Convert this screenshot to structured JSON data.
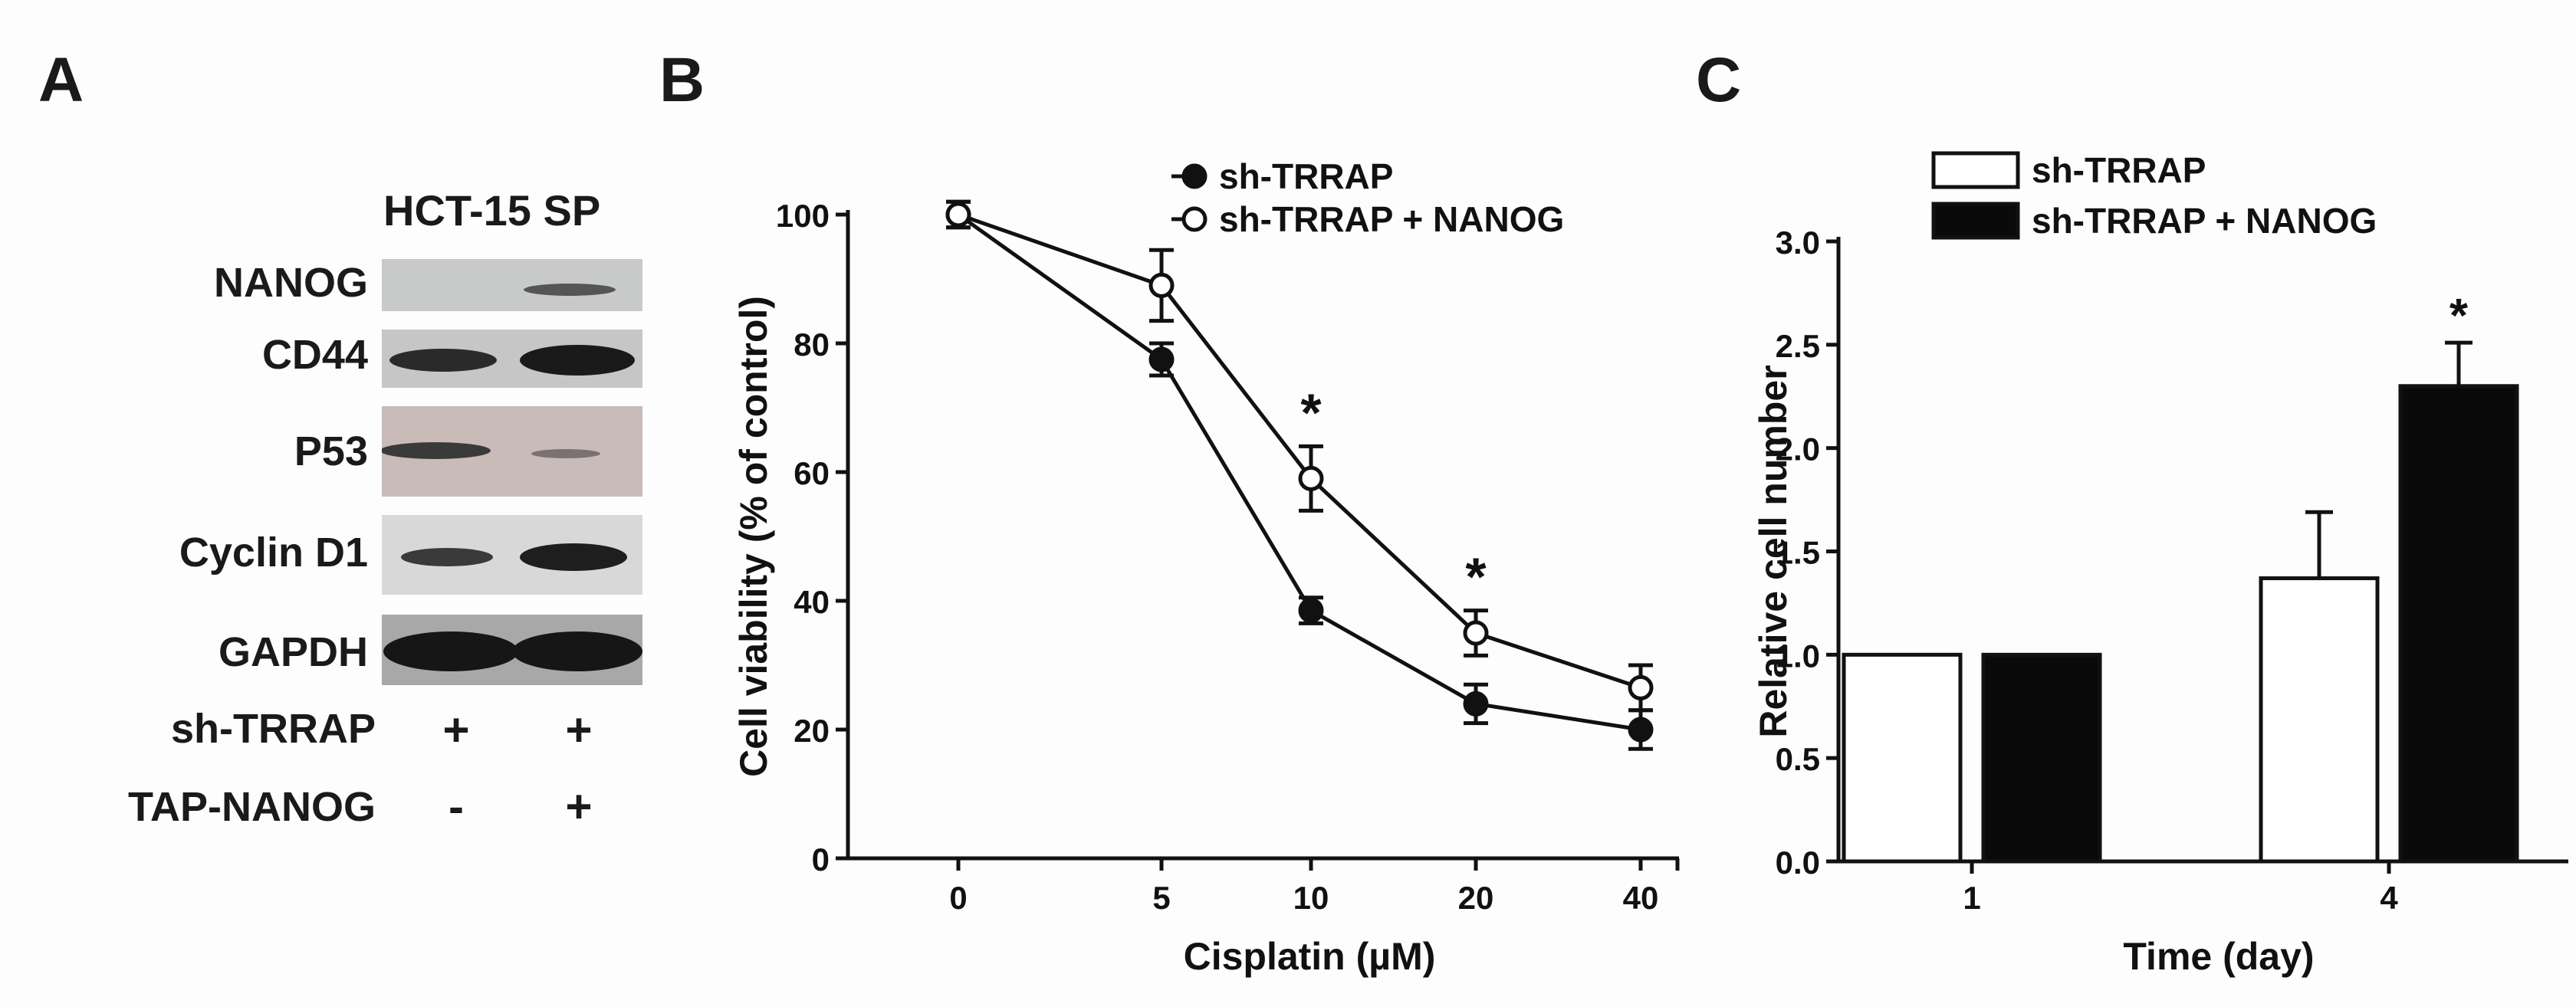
{
  "panels": {
    "a": "A",
    "b": "B",
    "c": "C"
  },
  "western_blot": {
    "title": "HCT-15 SP",
    "proteins": [
      "NANOG",
      "CD44",
      "P53",
      "Cyclin D1",
      "GAPDH"
    ],
    "conditions": [
      {
        "label": "sh-TRRAP",
        "lane1": "+",
        "lane2": "+"
      },
      {
        "label": "TAP-NANOG",
        "lane1": "-",
        "lane2": "+"
      }
    ],
    "colors": {
      "membrane": "#cfcfcf",
      "p53_membrane": "#cdbdb9",
      "band": "#1e1e1e"
    }
  },
  "chart_data": [
    {
      "type": "line",
      "title": "",
      "xlabel": "Cisplatin (µM)",
      "ylabel": "Cell viability (% of control)",
      "categories": [
        "0",
        "5",
        "10",
        "20",
        "40"
      ],
      "ylim": [
        0,
        100
      ],
      "yticks": [
        0,
        20,
        40,
        60,
        80,
        100
      ],
      "series": [
        {
          "name": "sh-TRRAP",
          "marker": "filled",
          "values": [
            100,
            77.5,
            38.5,
            24,
            20
          ],
          "errors": [
            2,
            2.5,
            2,
            3,
            3
          ]
        },
        {
          "name": "sh-TRRAP + NANOG",
          "marker": "open",
          "values": [
            100,
            89,
            59,
            35,
            26.5
          ],
          "errors": [
            2,
            5.5,
            5,
            3.5,
            3.5
          ]
        }
      ],
      "annotations": [
        {
          "category": "10",
          "text": "*"
        },
        {
          "category": "20",
          "text": "*"
        }
      ],
      "legend": "top-right"
    },
    {
      "type": "bar",
      "title": "",
      "xlabel": "Time (day)",
      "ylabel": "Relative cell number",
      "categories": [
        "1",
        "4"
      ],
      "ylim": [
        0,
        3.0
      ],
      "yticks": [
        "0.0",
        "0.5",
        "1.0",
        "1.5",
        "2.0",
        "2.5",
        "3.0"
      ],
      "series": [
        {
          "name": "sh-TRRAP",
          "fill": "#ffffff",
          "values": [
            1.0,
            1.37
          ],
          "errors": [
            0,
            0.32
          ]
        },
        {
          "name": "sh-TRRAP + NANOG",
          "fill": "#0a0a0a",
          "values": [
            1.0,
            2.3
          ],
          "errors": [
            0,
            0.21
          ]
        }
      ],
      "annotations": [
        {
          "category": "4",
          "series": "sh-TRRAP + NANOG",
          "text": "*"
        }
      ],
      "legend": "top-left"
    }
  ]
}
